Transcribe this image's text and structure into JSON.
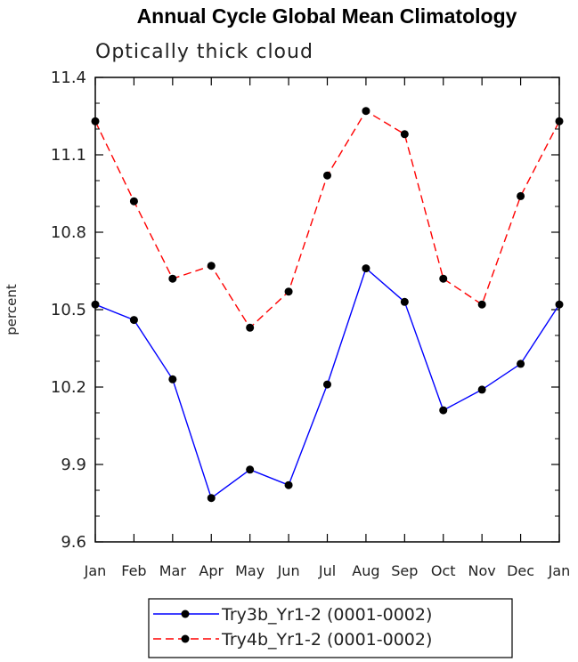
{
  "chart_data": {
    "type": "line",
    "title": "Annual Cycle Global Mean Climatology",
    "subtitle": "Optically thick cloud",
    "ylabel": "percent",
    "xlabel": "",
    "categories": [
      "Jan",
      "Feb",
      "Mar",
      "Apr",
      "May",
      "Jun",
      "Jul",
      "Aug",
      "Sep",
      "Oct",
      "Nov",
      "Dec",
      "Jan"
    ],
    "ylim": [
      9.6,
      11.4
    ],
    "yticks": [
      "9.6",
      "9.9",
      "10.2",
      "10.5",
      "10.8",
      "11.1",
      "11.4"
    ],
    "grid": false,
    "legend_position": "bottom",
    "series": [
      {
        "name": "Try3b_Yr1-2 (0001-0002)",
        "color": "#0000ff",
        "dash": "solid",
        "values": [
          10.52,
          10.46,
          10.23,
          9.77,
          9.88,
          9.82,
          10.21,
          10.66,
          10.53,
          10.11,
          10.19,
          10.29,
          10.52
        ]
      },
      {
        "name": "Try4b_Yr1-2 (0001-0002)",
        "color": "#ff0000",
        "dash": "dashed",
        "values": [
          11.23,
          10.92,
          10.62,
          10.67,
          10.43,
          10.57,
          11.02,
          11.27,
          11.18,
          10.62,
          10.52,
          10.94,
          11.23
        ]
      }
    ]
  }
}
